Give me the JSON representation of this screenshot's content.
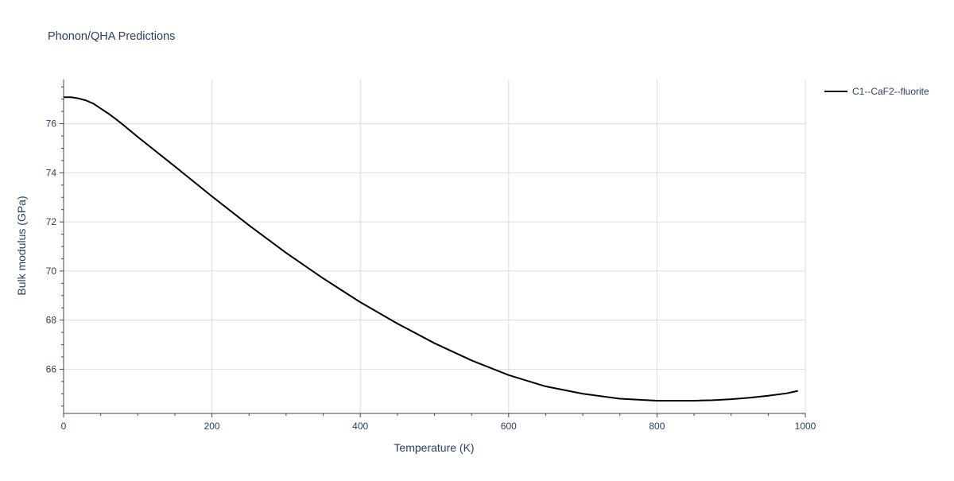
{
  "chart_data": {
    "type": "line",
    "title": "Phonon/QHA Predictions",
    "xlabel": "Temperature (K)",
    "ylabel": "Bulk modulus (GPa)",
    "xlim": [
      0,
      1000
    ],
    "ylim": [
      64.2,
      77.8
    ],
    "xticks": [
      0,
      200,
      400,
      600,
      800,
      1000
    ],
    "yticks": [
      66,
      68,
      70,
      72,
      74,
      76
    ],
    "grid": true,
    "legend_position": "top-right",
    "series": [
      {
        "name": "C1--CaF2--fluorite",
        "color": "#000000",
        "x": [
          0,
          10,
          20,
          30,
          40,
          50,
          60,
          70,
          80,
          100,
          150,
          200,
          250,
          300,
          350,
          400,
          450,
          500,
          550,
          600,
          650,
          700,
          750,
          800,
          850,
          875,
          900,
          925,
          950,
          975,
          990
        ],
        "y": [
          77.08,
          77.08,
          77.03,
          76.95,
          76.82,
          76.62,
          76.42,
          76.2,
          75.96,
          75.46,
          74.26,
          73.04,
          71.86,
          70.74,
          69.7,
          68.73,
          67.86,
          67.06,
          66.36,
          65.76,
          65.3,
          65.0,
          64.8,
          64.72,
          64.72,
          64.74,
          64.78,
          64.84,
          64.92,
          65.02,
          65.12
        ]
      }
    ]
  }
}
